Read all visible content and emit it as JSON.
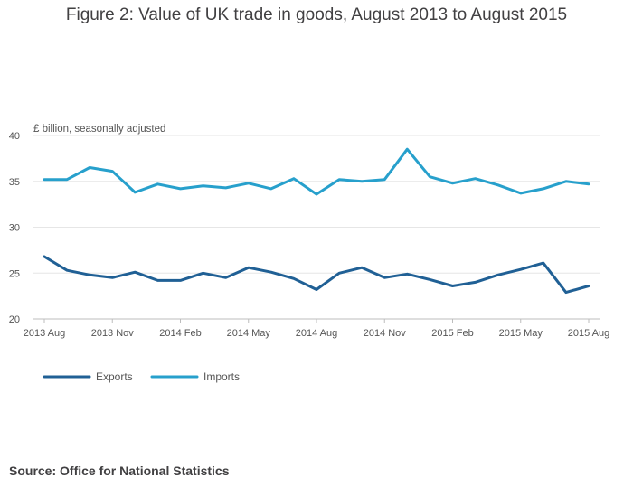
{
  "chart_data": {
    "type": "line",
    "title": "Figure 2: Value of UK trade in goods, August 2013 to August 2015",
    "ylabel": "£ billion, seasonally adjusted",
    "xlabel": "",
    "ylim": [
      20,
      40
    ],
    "yticks": [
      20,
      25,
      30,
      35,
      40
    ],
    "grid": true,
    "legend_position": "bottom-left",
    "x_tick_labels": [
      "2013 Aug",
      "2013 Nov",
      "2014 Feb",
      "2014 May",
      "2014 Aug",
      "2014 Nov",
      "2015 Feb",
      "2015 May",
      "2015 Aug"
    ],
    "x_tick_every": 3,
    "categories": [
      "2013 Aug",
      "2013 Sep",
      "2013 Oct",
      "2013 Nov",
      "2013 Dec",
      "2014 Jan",
      "2014 Feb",
      "2014 Mar",
      "2014 Apr",
      "2014 May",
      "2014 Jun",
      "2014 Jul",
      "2014 Aug",
      "2014 Sep",
      "2014 Oct",
      "2014 Nov",
      "2014 Dec",
      "2015 Jan",
      "2015 Feb",
      "2015 Mar",
      "2015 Apr",
      "2015 May",
      "2015 Jun",
      "2015 Jul",
      "2015 Aug"
    ],
    "series": [
      {
        "name": "Exports",
        "color": "#206095",
        "values": [
          26.8,
          25.3,
          24.8,
          24.5,
          25.1,
          24.2,
          24.2,
          25.0,
          24.5,
          25.6,
          25.1,
          24.4,
          23.2,
          25.0,
          25.6,
          24.5,
          24.9,
          24.3,
          23.6,
          24.0,
          24.8,
          25.4,
          26.1,
          22.9,
          23.6
        ]
      },
      {
        "name": "Imports",
        "color": "#27a0cc",
        "values": [
          35.2,
          35.2,
          36.5,
          36.1,
          33.8,
          34.7,
          34.2,
          34.5,
          34.3,
          34.8,
          34.2,
          35.3,
          33.6,
          35.2,
          35.0,
          35.2,
          38.5,
          35.5,
          34.8,
          35.3,
          34.6,
          33.7,
          34.2,
          35.0,
          34.7
        ]
      }
    ]
  },
  "source": "Source: Office for National Statistics"
}
